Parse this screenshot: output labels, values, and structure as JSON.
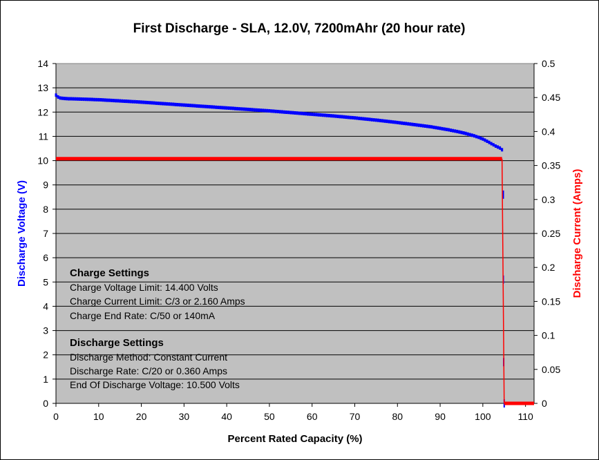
{
  "chart_data": {
    "type": "line",
    "title": "First Discharge - SLA, 12.0V, 7200mAhr (20 hour rate)",
    "xlabel": "Percent Rated Capacity (%)",
    "ylabel": "Discharge Voltage (V)",
    "y2label": "Discharge Current (Amps)",
    "xlim": [
      0,
      112
    ],
    "ylim": [
      0,
      14
    ],
    "y2lim": [
      0,
      0.5
    ],
    "x_ticks": [
      "0",
      "10",
      "20",
      "30",
      "40",
      "50",
      "60",
      "70",
      "80",
      "90",
      "100",
      "110"
    ],
    "y_ticks": [
      "0",
      "1",
      "2",
      "3",
      "4",
      "5",
      "6",
      "7",
      "8",
      "9",
      "10",
      "11",
      "12",
      "13",
      "14"
    ],
    "y2_ticks": [
      "0",
      "0.05",
      "0.1",
      "0.15",
      "0.2",
      "0.25",
      "0.3",
      "0.35",
      "0.4",
      "0.45",
      "0.5"
    ],
    "grid": "horizontal",
    "series": [
      {
        "axis": "left",
        "color": "#0000FF",
        "x": [
          0,
          0.5,
          1,
          2,
          3,
          5,
          10,
          15,
          20,
          25,
          30,
          35,
          40,
          45,
          50,
          55,
          60,
          65,
          70,
          75,
          80,
          85,
          88,
          90,
          92,
          94,
          96,
          98,
          99,
          100,
          101,
          102,
          103,
          104,
          104.5
        ],
        "y": [
          12.7,
          12.62,
          12.58,
          12.56,
          12.55,
          12.54,
          12.51,
          12.46,
          12.41,
          12.35,
          12.29,
          12.23,
          12.17,
          12.11,
          12.05,
          11.98,
          11.91,
          11.84,
          11.76,
          11.67,
          11.57,
          11.46,
          11.39,
          11.33,
          11.27,
          11.2,
          11.12,
          11.02,
          10.96,
          10.89,
          10.8,
          10.7,
          10.6,
          10.52,
          10.45
        ]
      },
      {
        "axis": "left",
        "color": "#0000FF",
        "x": [
          104.8,
          104.8,
          104.9,
          105.0
        ],
        "y": [
          8.6,
          5.1,
          1.7,
          0
        ]
      },
      {
        "axis": "right",
        "color": "#FF0000",
        "x": [
          0,
          104.5,
          104.8,
          105.0,
          112
        ],
        "y": [
          0.36,
          0.36,
          0.18,
          0,
          0
        ]
      }
    ]
  },
  "annotations": {
    "charge_title": "Charge Settings",
    "charge_lines": [
      "Charge Voltage Limit: 14.400 Volts",
      "Charge Current Limit: C/3 or 2.160 Amps",
      "Charge End Rate: C/50 or 140mA"
    ],
    "discharge_title": "Discharge Settings",
    "discharge_lines": [
      "Discharge Method: Constant Current",
      "Discharge Rate: C/20 or 0.360 Amps",
      "End Of Discharge Voltage: 10.500 Volts"
    ]
  }
}
